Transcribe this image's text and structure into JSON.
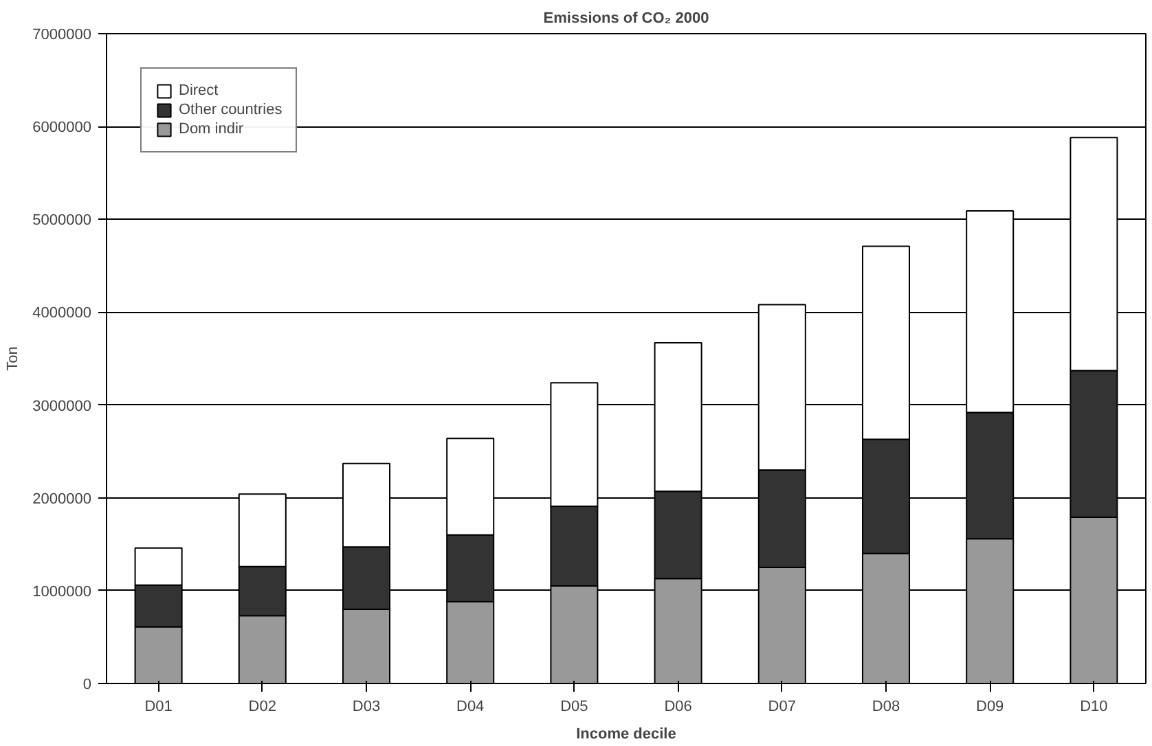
{
  "chart_data": {
    "type": "bar",
    "title": "Emissions of CO₂ 2000",
    "xlabel": "Income decile",
    "ylabel": "Ton",
    "categories": [
      "D01",
      "D02",
      "D03",
      "D04",
      "D05",
      "D06",
      "D07",
      "D08",
      "D09",
      "D10"
    ],
    "stacked": true,
    "series": [
      {
        "name": "Dom indir",
        "color": "#999999",
        "values": [
          610000,
          730000,
          800000,
          880000,
          1050000,
          1130000,
          1250000,
          1400000,
          1560000,
          1790000
        ]
      },
      {
        "name": "Other countries",
        "color": "#333333",
        "values": [
          450000,
          530000,
          670000,
          720000,
          860000,
          940000,
          1050000,
          1230000,
          1360000,
          1580000
        ]
      },
      {
        "name": "Direct",
        "color": "#ffffff",
        "values": [
          400000,
          780000,
          900000,
          1040000,
          1330000,
          1600000,
          1780000,
          2080000,
          2170000,
          2510000
        ]
      }
    ],
    "ylim": [
      0,
      7000000
    ],
    "yticks": [
      0,
      1000000,
      2000000,
      3000000,
      4000000,
      5000000,
      6000000,
      7000000
    ],
    "grid": "y",
    "legend": "top left"
  }
}
